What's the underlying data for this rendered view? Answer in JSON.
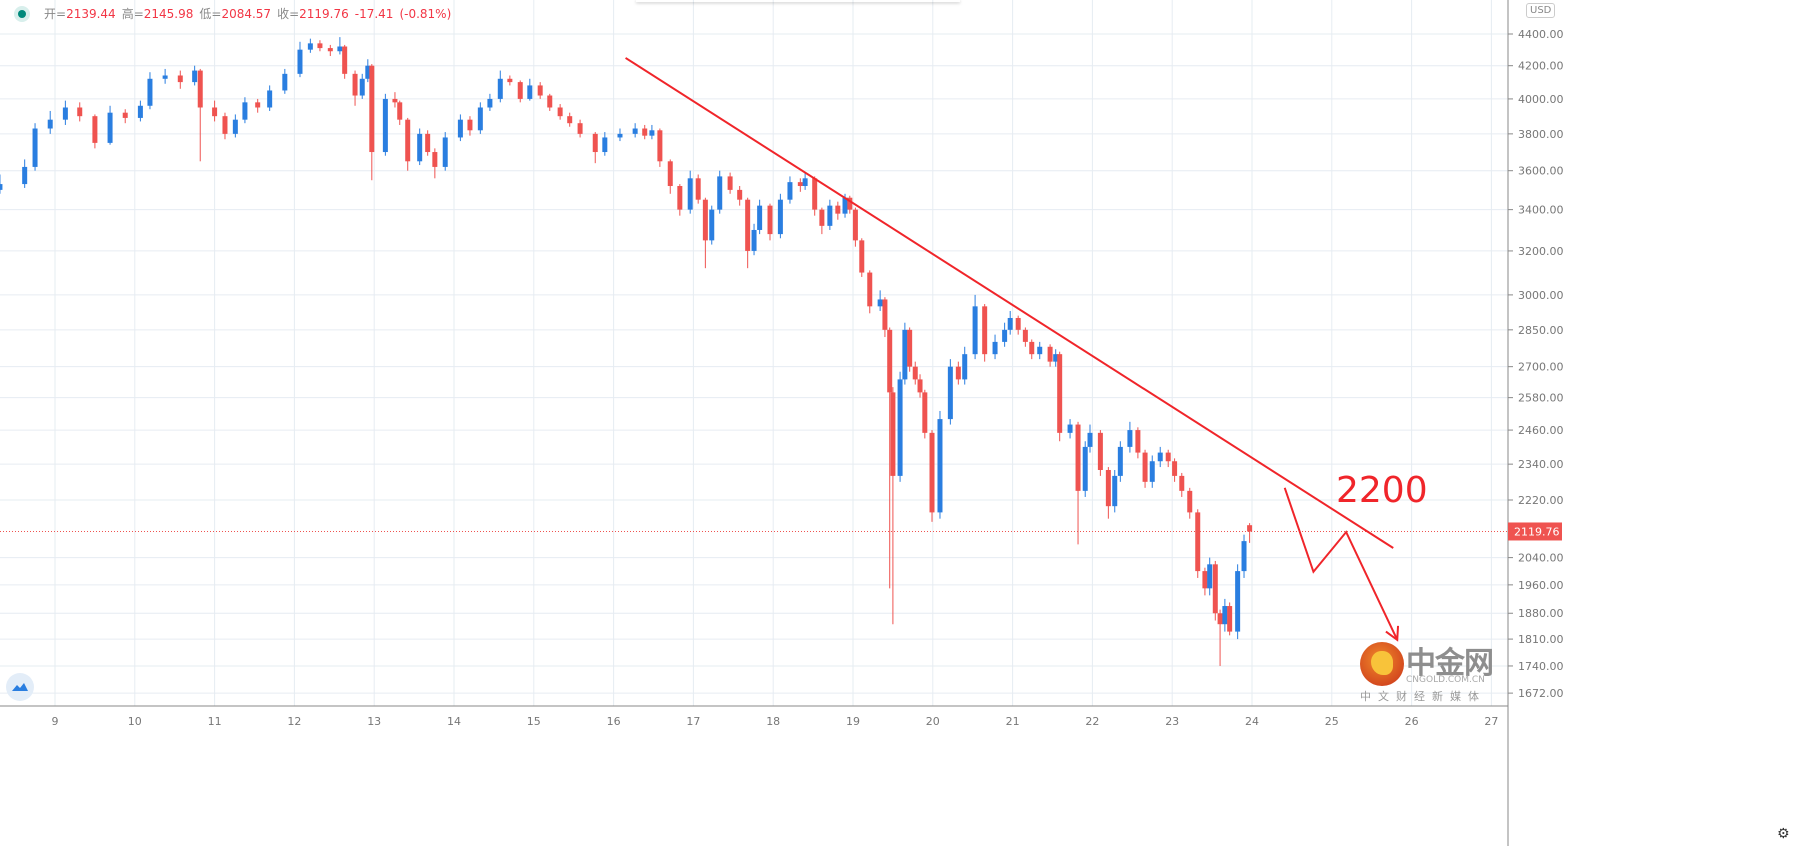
{
  "legend": {
    "open_label": "开=",
    "open": "2139.44",
    "high_label": "高=",
    "high": "2145.98",
    "low_label": "低=",
    "low": "2084.57",
    "close_label": "收=",
    "close": "2119.76",
    "change": "-17.41",
    "change_pct": "(-0.81%)"
  },
  "currency": "USD",
  "annotation": "2200",
  "watermark": {
    "name": "中金网",
    "domain": "CNGOLD.COM.CN",
    "slogan": "中文财经新媒体"
  },
  "colors": {
    "up": "#2a7ee0",
    "down": "#ef5350",
    "drawing": "#f0252a",
    "grid": "#e6ecf2"
  },
  "chart_data": {
    "type": "candlestick",
    "y_scale": "log",
    "ylim": [
      1640,
      4700
    ],
    "xlim": [
      8.31,
      26.8
    ],
    "grid": true,
    "y_ticks": [
      "4400.00",
      "4200.00",
      "4000.00",
      "3800.00",
      "3600.00",
      "3400.00",
      "3200.00",
      "3000.00",
      "2850.00",
      "2700.00",
      "2580.00",
      "2460.00",
      "2340.00",
      "2220.00",
      "2040.00",
      "1960.00",
      "1880.00",
      "1810.00",
      "1740.00",
      "1672.00"
    ],
    "x_ticks": [
      "9",
      "10",
      "11",
      "12",
      "13",
      "14",
      "15",
      "16",
      "17",
      "18",
      "19",
      "20",
      "21",
      "22",
      "23",
      "24",
      "25",
      "26",
      "27"
    ],
    "last_price": "2119.76",
    "candles_fields": [
      "day",
      "open",
      "high",
      "low",
      "close"
    ],
    "candles": [
      [
        8.31,
        3500,
        3580,
        3480,
        3530
      ],
      [
        8.62,
        3530,
        3660,
        3510,
        3620
      ],
      [
        8.75,
        3620,
        3860,
        3600,
        3830
      ],
      [
        8.94,
        3830,
        3930,
        3800,
        3880
      ],
      [
        9.13,
        3880,
        3990,
        3850,
        3950
      ],
      [
        9.31,
        3950,
        3980,
        3870,
        3900
      ],
      [
        9.5,
        3900,
        3910,
        3720,
        3750
      ],
      [
        9.69,
        3750,
        3960,
        3740,
        3920
      ],
      [
        9.88,
        3920,
        3940,
        3860,
        3890
      ],
      [
        10.07,
        3890,
        3990,
        3870,
        3960
      ],
      [
        10.19,
        3960,
        4160,
        3940,
        4120
      ],
      [
        10.38,
        4120,
        4180,
        4090,
        4140
      ],
      [
        10.57,
        4140,
        4170,
        4060,
        4100
      ],
      [
        10.75,
        4100,
        4200,
        4080,
        4170
      ],
      [
        10.82,
        4170,
        4180,
        3650,
        3950
      ],
      [
        11.0,
        3950,
        3990,
        3870,
        3900
      ],
      [
        11.13,
        3900,
        3920,
        3770,
        3800
      ],
      [
        11.26,
        3800,
        3910,
        3780,
        3880
      ],
      [
        11.38,
        3880,
        4010,
        3860,
        3980
      ],
      [
        11.54,
        3980,
        4000,
        3920,
        3950
      ],
      [
        11.69,
        3950,
        4080,
        3930,
        4050
      ],
      [
        11.88,
        4050,
        4180,
        4030,
        4150
      ],
      [
        12.07,
        4150,
        4350,
        4130,
        4300
      ],
      [
        12.2,
        4300,
        4370,
        4280,
        4340
      ],
      [
        12.32,
        4340,
        4360,
        4290,
        4310
      ],
      [
        12.45,
        4310,
        4330,
        4260,
        4290
      ],
      [
        12.57,
        4290,
        4380,
        4270,
        4320
      ],
      [
        12.63,
        4320,
        4330,
        4120,
        4150
      ],
      [
        12.76,
        4150,
        4170,
        3960,
        4020
      ],
      [
        12.85,
        4020,
        4150,
        4000,
        4120
      ],
      [
        12.92,
        4120,
        4240,
        4100,
        4200
      ],
      [
        12.97,
        4200,
        4210,
        3550,
        3700
      ],
      [
        13.14,
        3700,
        4030,
        3680,
        4000
      ],
      [
        13.26,
        4000,
        4040,
        3950,
        3980
      ],
      [
        13.32,
        3980,
        3990,
        3850,
        3880
      ],
      [
        13.42,
        3880,
        3890,
        3600,
        3650
      ],
      [
        13.57,
        3650,
        3830,
        3630,
        3800
      ],
      [
        13.67,
        3800,
        3820,
        3680,
        3700
      ],
      [
        13.76,
        3700,
        3720,
        3560,
        3620
      ],
      [
        13.89,
        3620,
        3810,
        3600,
        3780
      ],
      [
        14.08,
        3780,
        3910,
        3760,
        3880
      ],
      [
        14.2,
        3880,
        3900,
        3790,
        3820
      ],
      [
        14.33,
        3820,
        3980,
        3800,
        3950
      ],
      [
        14.45,
        3950,
        4030,
        3930,
        4000
      ],
      [
        14.58,
        4000,
        4170,
        3980,
        4120
      ],
      [
        14.7,
        4120,
        4140,
        4080,
        4100
      ],
      [
        14.83,
        4100,
        4110,
        3980,
        4000
      ],
      [
        14.95,
        4000,
        4120,
        3990,
        4080
      ],
      [
        15.08,
        4080,
        4100,
        4000,
        4020
      ],
      [
        15.2,
        4020,
        4030,
        3930,
        3950
      ],
      [
        15.33,
        3950,
        3970,
        3880,
        3900
      ],
      [
        15.45,
        3900,
        3920,
        3840,
        3860
      ],
      [
        15.58,
        3860,
        3880,
        3780,
        3800
      ],
      [
        15.77,
        3800,
        3810,
        3640,
        3700
      ],
      [
        15.89,
        3700,
        3810,
        3680,
        3780
      ],
      [
        16.08,
        3780,
        3830,
        3760,
        3800
      ],
      [
        16.27,
        3800,
        3860,
        3780,
        3830
      ],
      [
        16.39,
        3830,
        3850,
        3770,
        3790
      ],
      [
        16.48,
        3790,
        3850,
        3770,
        3820
      ],
      [
        16.58,
        3820,
        3830,
        3620,
        3650
      ],
      [
        16.71,
        3650,
        3660,
        3480,
        3520
      ],
      [
        16.83,
        3520,
        3530,
        3370,
        3400
      ],
      [
        16.96,
        3400,
        3600,
        3380,
        3560
      ],
      [
        17.06,
        3560,
        3580,
        3430,
        3450
      ],
      [
        17.15,
        3450,
        3460,
        3120,
        3250
      ],
      [
        17.23,
        3250,
        3420,
        3230,
        3400
      ],
      [
        17.33,
        3400,
        3600,
        3380,
        3570
      ],
      [
        17.46,
        3570,
        3590,
        3480,
        3500
      ],
      [
        17.58,
        3500,
        3520,
        3420,
        3450
      ],
      [
        17.68,
        3450,
        3460,
        3120,
        3200
      ],
      [
        17.76,
        3200,
        3330,
        3180,
        3300
      ],
      [
        17.83,
        3300,
        3450,
        3280,
        3420
      ],
      [
        17.96,
        3420,
        3430,
        3250,
        3280
      ],
      [
        18.09,
        3280,
        3480,
        3260,
        3450
      ],
      [
        18.21,
        3450,
        3570,
        3430,
        3540
      ],
      [
        18.34,
        3540,
        3560,
        3490,
        3520
      ],
      [
        18.4,
        3520,
        3590,
        3500,
        3560
      ],
      [
        18.52,
        3560,
        3570,
        3370,
        3400
      ],
      [
        18.61,
        3400,
        3410,
        3280,
        3320
      ],
      [
        18.71,
        3320,
        3450,
        3300,
        3420
      ],
      [
        18.81,
        3420,
        3440,
        3350,
        3380
      ],
      [
        18.9,
        3380,
        3480,
        3360,
        3460
      ],
      [
        18.96,
        3460,
        3470,
        3380,
        3400
      ],
      [
        19.03,
        3400,
        3410,
        3220,
        3250
      ],
      [
        19.11,
        3250,
        3260,
        3080,
        3100
      ],
      [
        19.21,
        3100,
        3110,
        2920,
        2950
      ],
      [
        19.34,
        2950,
        3020,
        2930,
        2980
      ],
      [
        19.4,
        2980,
        2990,
        2820,
        2850
      ],
      [
        19.46,
        2850,
        2860,
        1950,
        2600
      ],
      [
        19.5,
        2600,
        2620,
        1850,
        2300
      ],
      [
        19.59,
        2300,
        2680,
        2280,
        2650
      ],
      [
        19.65,
        2650,
        2880,
        2630,
        2850
      ],
      [
        19.71,
        2850,
        2860,
        2680,
        2700
      ],
      [
        19.78,
        2700,
        2720,
        2630,
        2650
      ],
      [
        19.84,
        2650,
        2670,
        2580,
        2600
      ],
      [
        19.9,
        2600,
        2610,
        2430,
        2450
      ],
      [
        19.99,
        2450,
        2460,
        2150,
        2180
      ],
      [
        20.09,
        2180,
        2530,
        2160,
        2500
      ],
      [
        20.22,
        2500,
        2730,
        2480,
        2700
      ],
      [
        20.32,
        2700,
        2720,
        2630,
        2650
      ],
      [
        20.4,
        2650,
        2780,
        2630,
        2750
      ],
      [
        20.53,
        2750,
        3000,
        2730,
        2950
      ],
      [
        20.65,
        2950,
        2960,
        2720,
        2750
      ],
      [
        20.78,
        2750,
        2830,
        2730,
        2800
      ],
      [
        20.9,
        2800,
        2880,
        2780,
        2850
      ],
      [
        20.97,
        2850,
        2930,
        2830,
        2900
      ],
      [
        21.07,
        2900,
        2910,
        2830,
        2850
      ],
      [
        21.16,
        2850,
        2860,
        2780,
        2800
      ],
      [
        21.24,
        2800,
        2810,
        2730,
        2750
      ],
      [
        21.34,
        2750,
        2800,
        2730,
        2780
      ],
      [
        21.47,
        2780,
        2790,
        2700,
        2720
      ],
      [
        21.54,
        2720,
        2770,
        2700,
        2750
      ],
      [
        21.59,
        2750,
        2760,
        2420,
        2450
      ],
      [
        21.72,
        2450,
        2500,
        2430,
        2480
      ],
      [
        21.82,
        2480,
        2490,
        2080,
        2250
      ],
      [
        21.91,
        2250,
        2420,
        2230,
        2400
      ],
      [
        21.97,
        2400,
        2480,
        2380,
        2450
      ],
      [
        22.1,
        2450,
        2460,
        2300,
        2320
      ],
      [
        22.2,
        2320,
        2330,
        2160,
        2200
      ],
      [
        22.28,
        2200,
        2320,
        2180,
        2300
      ],
      [
        22.35,
        2300,
        2420,
        2280,
        2400
      ],
      [
        22.47,
        2400,
        2490,
        2380,
        2460
      ],
      [
        22.57,
        2460,
        2470,
        2360,
        2380
      ],
      [
        22.66,
        2380,
        2390,
        2260,
        2280
      ],
      [
        22.75,
        2280,
        2370,
        2260,
        2350
      ],
      [
        22.85,
        2350,
        2400,
        2330,
        2380
      ],
      [
        22.95,
        2380,
        2390,
        2330,
        2350
      ],
      [
        23.03,
        2350,
        2360,
        2280,
        2300
      ],
      [
        23.12,
        2300,
        2310,
        2230,
        2250
      ],
      [
        23.22,
        2250,
        2260,
        2160,
        2180
      ],
      [
        23.32,
        2180,
        2190,
        1980,
        2000
      ],
      [
        23.41,
        2000,
        2010,
        1930,
        1950
      ],
      [
        23.47,
        1950,
        2040,
        1930,
        2020
      ],
      [
        23.54,
        2020,
        2030,
        1860,
        1880
      ],
      [
        23.6,
        1880,
        1890,
        1740,
        1850
      ],
      [
        23.66,
        1850,
        1920,
        1830,
        1900
      ],
      [
        23.72,
        1900,
        1910,
        1820,
        1830
      ],
      [
        23.82,
        1830,
        2020,
        1810,
        2000
      ],
      [
        23.9,
        2000,
        2110,
        1980,
        2090
      ],
      [
        23.97,
        2139.44,
        2145.98,
        2084.57,
        2119.76
      ]
    ],
    "drawings": {
      "trendline": [
        [
          16.15,
          4248
        ],
        [
          25.77,
          2069
        ]
      ],
      "projection_path": [
        [
          24.41,
          2260
        ],
        [
          24.77,
          1998
        ],
        [
          25.18,
          2118
        ],
        [
          25.82,
          1808
        ]
      ]
    }
  }
}
